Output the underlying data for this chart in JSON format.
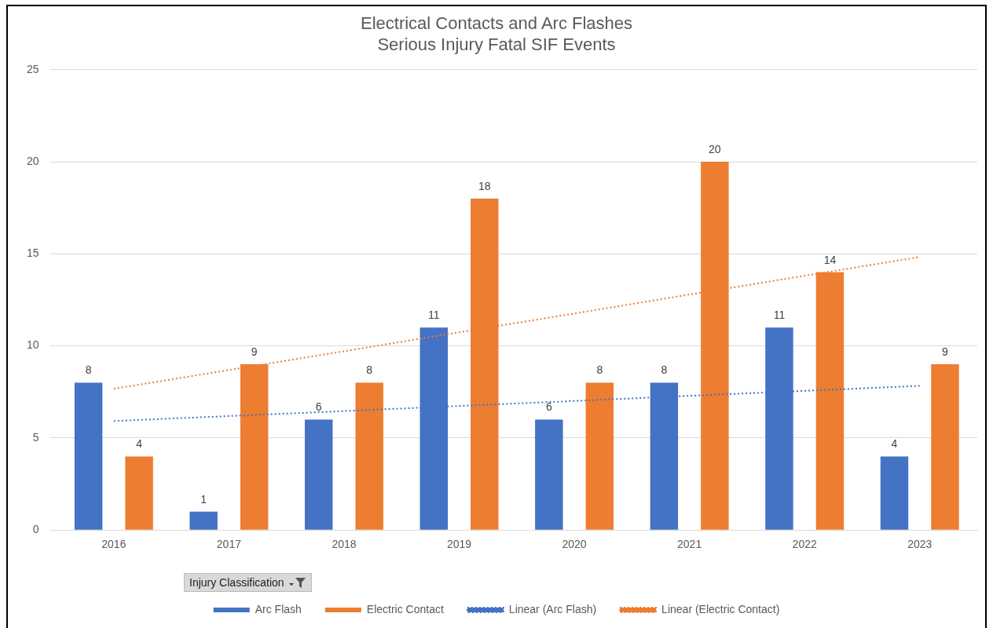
{
  "chart_data": {
    "type": "bar",
    "title": "Electrical Contacts and Arc Flashes\nSerious Injury Fatal SIF Events",
    "categories": [
      "2016",
      "2017",
      "2018",
      "2019",
      "2020",
      "2021",
      "2022",
      "2023"
    ],
    "series": [
      {
        "name": "Arc Flash",
        "color": "#4472c4",
        "values": [
          8,
          1,
          6,
          11,
          6,
          8,
          11,
          4
        ],
        "value_labels": [
          "8",
          "1",
          "6",
          "11",
          "6",
          "8",
          "11",
          "4"
        ]
      },
      {
        "name": "Electric Contact",
        "color": "#ed7d31",
        "values": [
          4,
          9,
          8,
          18,
          8,
          20,
          14,
          9
        ],
        "value_labels": [
          "4",
          "9",
          "8",
          "18",
          "8",
          "20",
          "14",
          "9"
        ]
      },
      {
        "name": "Linear (Arc Flash)",
        "type": "line",
        "color": "#4472c4",
        "line_style": "dotted",
        "marker": "none",
        "values": [
          5.92,
          6.19,
          6.46,
          6.74,
          7.01,
          7.29,
          7.56,
          7.83
        ]
      },
      {
        "name": "Linear (Electric Contact)",
        "type": "line",
        "color": "#ed7d31",
        "line_style": "dotted",
        "marker": "none",
        "values": [
          7.67,
          8.69,
          9.71,
          10.74,
          11.76,
          12.79,
          13.81,
          14.83
        ]
      }
    ],
    "ylim": [
      0,
      25
    ],
    "yticks": [
      0,
      5,
      10,
      15,
      20,
      25
    ],
    "grid": "y",
    "legend": "bottom",
    "annotations": [
      "Injury Classification"
    ]
  }
}
